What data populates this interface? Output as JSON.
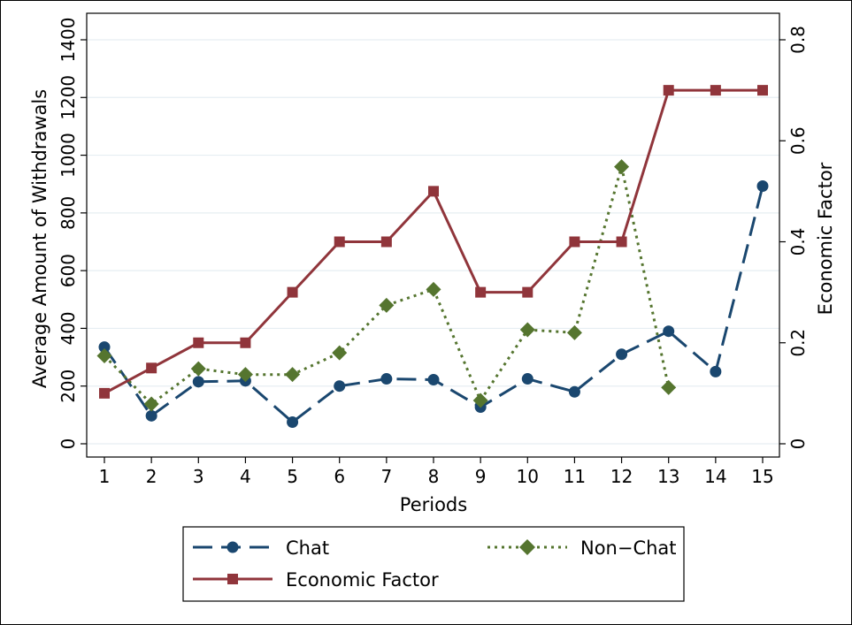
{
  "chart_data": {
    "type": "line",
    "title": "",
    "xlabel": "Periods",
    "ylabel": "Average Amount of Withdrawals",
    "y2label": "Economic Factor",
    "x": [
      1,
      2,
      3,
      4,
      5,
      6,
      7,
      8,
      9,
      10,
      11,
      12,
      13,
      14,
      15
    ],
    "xlim": [
      1,
      15
    ],
    "ylim": [
      0,
      1400
    ],
    "y2lim": [
      0,
      0.8
    ],
    "yticks": [
      0,
      200,
      400,
      600,
      800,
      1000,
      1200,
      1400
    ],
    "y2ticks": [
      0,
      0.2,
      0.4,
      0.6,
      0.8
    ],
    "grid": true,
    "legend_position": "bottom",
    "series": [
      {
        "name": "Chat",
        "axis": "left",
        "color": "#1a476f",
        "line_style": "long-dash",
        "marker": "circle",
        "values": [
          335,
          97,
          215,
          218,
          75,
          200,
          225,
          222,
          127,
          225,
          180,
          310,
          390,
          250,
          893
        ]
      },
      {
        "name": "Non−Chat",
        "axis": "left",
        "color": "#55752f",
        "line_style": "dotted",
        "marker": "diamond",
        "values": [
          305,
          138,
          260,
          240,
          240,
          315,
          480,
          535,
          150,
          395,
          385,
          960,
          195,
          null,
          null
        ]
      },
      {
        "name": "Economic Factor",
        "axis": "right",
        "color": "#90353b",
        "line_style": "solid",
        "marker": "square",
        "values": [
          0.1,
          0.15,
          0.2,
          0.2,
          0.3,
          0.4,
          0.4,
          0.5,
          0.3,
          0.3,
          0.4,
          0.4,
          0.7,
          0.7,
          0.7
        ]
      }
    ]
  }
}
